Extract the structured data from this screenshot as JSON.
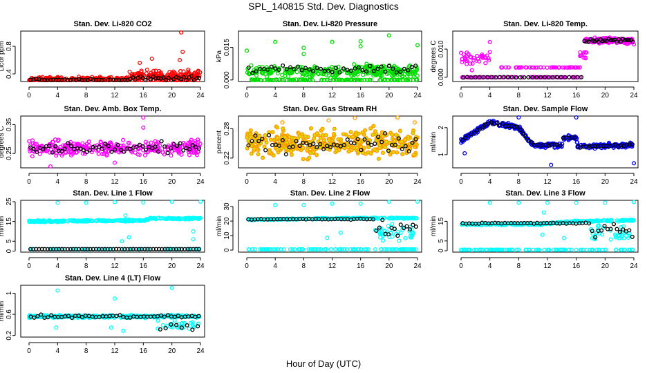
{
  "title": "SPL_140815  Std. Dev. Diagnostics",
  "xlabel": "Hour of Day (UTC)",
  "chart_data": [
    {
      "type": "scatter",
      "title": "Stan. Dev. Li-820 CO2",
      "ylabel": "Licor ppm",
      "xlim": [
        0,
        24
      ],
      "xticks": [
        0,
        4,
        8,
        12,
        16,
        20,
        24
      ],
      "ylim": [
        0.29,
        1.02
      ],
      "yticks": [
        0.4,
        0.8
      ],
      "color": "#ff0000",
      "segments": [
        [
          0,
          14,
          0.32,
          0.05,
          220
        ],
        [
          14,
          24,
          0.36,
          0.13,
          200
        ]
      ],
      "black": [
        [
          0,
          14,
          0.31,
          0.03,
          35
        ],
        [
          14,
          24,
          0.33,
          0.05,
          28
        ]
      ],
      "outliers": [
        [
          21.3,
          1.0
        ],
        [
          21.5,
          0.72
        ],
        [
          21.1,
          0.6
        ],
        [
          15.5,
          0.56
        ],
        [
          17.2,
          0.62
        ],
        [
          10.8,
          0.24
        ]
      ]
    },
    {
      "type": "scatter",
      "title": "Stan. Dev. Li-820 Pressure",
      "ylabel": "kPa",
      "xlim": [
        0,
        24
      ],
      "xticks": [
        0,
        4,
        8,
        12,
        16,
        20,
        24
      ],
      "ylim": [
        -0.0007,
        0.0225
      ],
      "yticks": [
        0.0,
        0.015
      ],
      "ytickfmt": 3,
      "color": "#00dd00",
      "segments": [
        [
          0,
          24,
          0.004,
          0.004,
          320
        ],
        [
          0,
          24,
          0.0,
          0.0003,
          120
        ]
      ],
      "black": [
        [
          0,
          24,
          0.005,
          0.003,
          45
        ]
      ],
      "outliers": [
        [
          0,
          0.0135
        ],
        [
          4,
          0.0175
        ],
        [
          8,
          0.0148
        ],
        [
          8,
          0.012
        ],
        [
          12,
          0.0175
        ],
        [
          16,
          0.0178
        ],
        [
          16,
          0.0155
        ],
        [
          20,
          0.0205
        ],
        [
          24,
          0.016
        ]
      ]
    },
    {
      "type": "scatter",
      "title": "Stan. Dev. Li-820 Temp.",
      "ylabel": "degrees C",
      "xlim": [
        0,
        24
      ],
      "xticks": [
        0,
        4,
        8,
        12,
        16,
        20,
        24
      ],
      "ylim": [
        -0.0015,
        0.0164
      ],
      "yticks": [
        0.0,
        0.01
      ],
      "ytickfmt": 3,
      "color": "#ff00ff",
      "segments": [
        [
          0,
          17,
          0.0,
          0.0001,
          80
        ],
        [
          5.5,
          16.5,
          0.0035,
          0.0001,
          50
        ],
        [
          0,
          4,
          0.007,
          0.004,
          40
        ],
        [
          17,
          24,
          0.013,
          0.0015,
          160
        ],
        [
          16.5,
          17.5,
          0.008,
          0.002,
          10
        ]
      ],
      "black": [
        [
          0,
          17,
          0.0,
          0.0001,
          30
        ],
        [
          17,
          24,
          0.013,
          0.001,
          25
        ]
      ],
      "outliers": [
        [
          4,
          0.0125
        ],
        [
          4,
          0.009
        ],
        [
          1.5,
          0.0025
        ],
        [
          15,
          0.0035
        ],
        [
          24,
          0.0117
        ]
      ]
    },
    {
      "type": "scatter",
      "title": "Stan. Dev. Amb. Box Temp.",
      "ylabel": "degrees C",
      "xlim": [
        0,
        24
      ],
      "xticks": [
        0,
        4,
        8,
        12,
        16,
        20,
        24
      ],
      "ylim": [
        0.2,
        0.38
      ],
      "yticks": [
        0.25,
        0.35
      ],
      "color": "#ff00ff",
      "segments": [
        [
          0,
          24,
          0.27,
          0.035,
          320
        ]
      ],
      "black": [
        [
          0,
          24,
          0.27,
          0.025,
          55
        ]
      ],
      "outliers": [
        [
          16,
          0.375
        ],
        [
          16,
          0.34
        ],
        [
          3,
          0.205
        ],
        [
          12,
          0.218
        ]
      ]
    },
    {
      "type": "scatter",
      "title": "Stan. Dev. Gas Stream RH",
      "ylabel": "percent",
      "xlim": [
        0,
        24
      ],
      "xticks": [
        0,
        4,
        8,
        12,
        16,
        20,
        24
      ],
      "ylim": [
        0.2,
        0.306
      ],
      "yticks": [
        0.22,
        0.28
      ],
      "color": "#ff9900",
      "inner": "#dddd00",
      "segments": [
        [
          0,
          24,
          0.25,
          0.04,
          380
        ]
      ],
      "black": [
        [
          0,
          24,
          0.25,
          0.025,
          50
        ]
      ],
      "outliers": [
        [
          15.2,
          0.302
        ],
        [
          5,
          0.293
        ],
        [
          21.2,
          0.303
        ],
        [
          23.6,
          0.293
        ],
        [
          11.5,
          0.297
        ]
      ]
    },
    {
      "type": "scatter",
      "title": "Stan. Dev. Sample Flow",
      "ylabel": "ml/min",
      "xlim": [
        0,
        24
      ],
      "xticks": [
        0,
        4,
        8,
        12,
        16,
        20,
        24
      ],
      "ylim": [
        0.51,
        2.43
      ],
      "yticks": [
        1.0,
        2.0
      ],
      "color": "#0000ff",
      "trend": [
        [
          0,
          1.5
        ],
        [
          4,
          2.2
        ],
        [
          8,
          2.0
        ],
        [
          10,
          1.35
        ],
        [
          14,
          1.35
        ],
        [
          14.2,
          1.6
        ],
        [
          16,
          1.65
        ],
        [
          16.2,
          1.3
        ],
        [
          24,
          1.35
        ]
      ],
      "segments": [
        [
          0,
          24,
          0,
          0.12,
          360
        ]
      ],
      "black": [
        [
          0,
          24,
          0,
          0.07,
          60
        ]
      ],
      "outliers": [
        [
          16,
          2.75
        ],
        [
          12.5,
          0.62
        ],
        [
          24,
          0.68
        ],
        [
          0.5,
          1.05
        ],
        [
          8,
          2.45
        ]
      ]
    },
    {
      "type": "scatter",
      "title": "Stan. Dev. Line 1 Flow",
      "ylabel": "ml/min",
      "xlim": [
        0,
        24
      ],
      "xticks": [
        0,
        4,
        8,
        12,
        16,
        20,
        24
      ],
      "ylim": [
        -0.5,
        25.7
      ],
      "yticks": [
        0,
        5,
        15,
        25
      ],
      "color": "#00ffff",
      "trend": [
        [
          0,
          15
        ],
        [
          16,
          15.5
        ],
        [
          17,
          16.5
        ],
        [
          24,
          16.5
        ]
      ],
      "segments": [
        [
          0,
          24,
          0,
          0.6,
          300
        ],
        [
          0,
          24,
          1,
          0.05,
          80
        ]
      ],
      "black": [
        [
          0,
          24,
          1,
          0.05,
          60
        ]
      ],
      "blacktrend": false,
      "outliers": [
        [
          4,
          24.5
        ],
        [
          8,
          24.5
        ],
        [
          12,
          24.8
        ],
        [
          16,
          24.6
        ],
        [
          20,
          25.1
        ],
        [
          24,
          25.3
        ],
        [
          13,
          5
        ],
        [
          14,
          7
        ],
        [
          13.5,
          18
        ],
        [
          23,
          10
        ],
        [
          23,
          6
        ]
      ]
    },
    {
      "type": "scatter",
      "title": "Stan. Dev. Line 2 Flow",
      "ylabel": "ml/min",
      "xlim": [
        0,
        24
      ],
      "xticks": [
        0,
        4,
        8,
        12,
        16,
        20,
        24
      ],
      "ylim": [
        -1.4,
        34.3
      ],
      "yticks": [
        0,
        10,
        20,
        30
      ],
      "color": "#00ffff",
      "trend": [
        [
          0,
          21
        ],
        [
          16,
          22
        ],
        [
          24,
          22
        ]
      ],
      "segments": [
        [
          0,
          24,
          0,
          0.6,
          260
        ],
        [
          0,
          24,
          0.5,
          0.05,
          100
        ],
        [
          18,
          23.5,
          12,
          9,
          40
        ]
      ],
      "black": [
        [
          0,
          18,
          21.3,
          0.4,
          40
        ],
        [
          18,
          24,
          14,
          9,
          14
        ]
      ],
      "outliers": [
        [
          4,
          31
        ],
        [
          8,
          31
        ],
        [
          12,
          32
        ],
        [
          16,
          32
        ],
        [
          20,
          33.5
        ],
        [
          24,
          33.5
        ],
        [
          11.3,
          8.5
        ],
        [
          13.2,
          12
        ]
      ]
    },
    {
      "type": "scatter",
      "title": "Stan. Dev. Line 3 Flow",
      "ylabel": "ml/min",
      "xlim": [
        0,
        24
      ],
      "xticks": [
        0,
        4,
        8,
        12,
        16,
        20,
        24
      ],
      "ylim": [
        -0.7,
        25.7
      ],
      "yticks": [
        0,
        5,
        15
      ],
      "color": "#00ffff",
      "trend": [
        [
          0,
          13.5
        ],
        [
          11,
          13.5
        ],
        [
          16,
          15
        ],
        [
          24,
          15.5
        ]
      ],
      "segments": [
        [
          0,
          24,
          0,
          0.6,
          260
        ],
        [
          0,
          24,
          0.5,
          0.05,
          100
        ],
        [
          18,
          23.5,
          9,
          6,
          35
        ]
      ],
      "black": [
        [
          0,
          18,
          14,
          0.4,
          40
        ],
        [
          18,
          24,
          10,
          6,
          14
        ]
      ],
      "outliers": [
        [
          4,
          24.5
        ],
        [
          8,
          24.5
        ],
        [
          12,
          24.5
        ],
        [
          16,
          24.5
        ],
        [
          20,
          24.5
        ],
        [
          24,
          24.8
        ],
        [
          11.3,
          8.2
        ],
        [
          14.3,
          6.5
        ],
        [
          11.5,
          19.5
        ]
      ]
    },
    {
      "type": "scatter",
      "title": "Stan. Dev. Line 4 (LT) Flow",
      "ylabel": "ml/min",
      "xlim": [
        0,
        24
      ],
      "xticks": [
        0,
        4,
        8,
        12,
        16,
        20,
        24
      ],
      "ylim": [
        0.17,
        1.15
      ],
      "yticks": [
        0.2,
        0.6,
        1.0
      ],
      "color": "#00ffff",
      "segments": [
        [
          0,
          24,
          0.56,
          0.04,
          320
        ],
        [
          18,
          24,
          0.4,
          0.12,
          30
        ]
      ],
      "black": [
        [
          0,
          24,
          0.56,
          0.04,
          50
        ],
        [
          18,
          24,
          0.35,
          0.12,
          8
        ]
      ],
      "outliers": [
        [
          4,
          1.05
        ],
        [
          20,
          1.1
        ],
        [
          12,
          0.9
        ],
        [
          11.5,
          0.35
        ],
        [
          13.2,
          0.29
        ],
        [
          3.8,
          0.35
        ]
      ]
    }
  ]
}
